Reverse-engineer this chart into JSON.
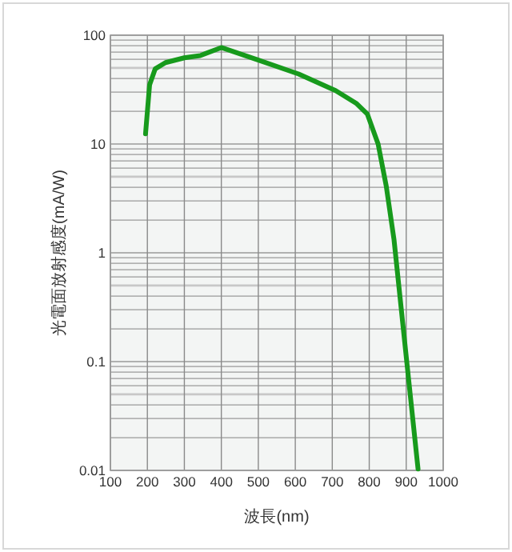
{
  "chart_data": {
    "type": "line",
    "xlabel": "波長(nm)",
    "ylabel": "光電面放射感度(mA/W)",
    "log": "y",
    "grid": true,
    "marker": "none",
    "line_style": "solid",
    "xlim": [
      100,
      1000
    ],
    "xticks": [
      100,
      200,
      300,
      400,
      500,
      600,
      700,
      800,
      900,
      1000
    ],
    "ylim": [
      0.01,
      100
    ],
    "yticks": [
      0.01,
      0.1,
      1,
      10,
      100
    ],
    "series": [
      {
        "color": "#179a1c",
        "x": [
          195,
          206,
          221,
          249,
          300,
          343,
          400,
          494,
          609,
          709,
          766,
          795,
          824,
          846,
          867,
          903,
          932
        ],
        "values": [
          12.4,
          35,
          49,
          56,
          62,
          65,
          77,
          60,
          44,
          31,
          23.5,
          18.8,
          10,
          4.1,
          1.32,
          0.089,
          0.0103
        ]
      }
    ]
  }
}
